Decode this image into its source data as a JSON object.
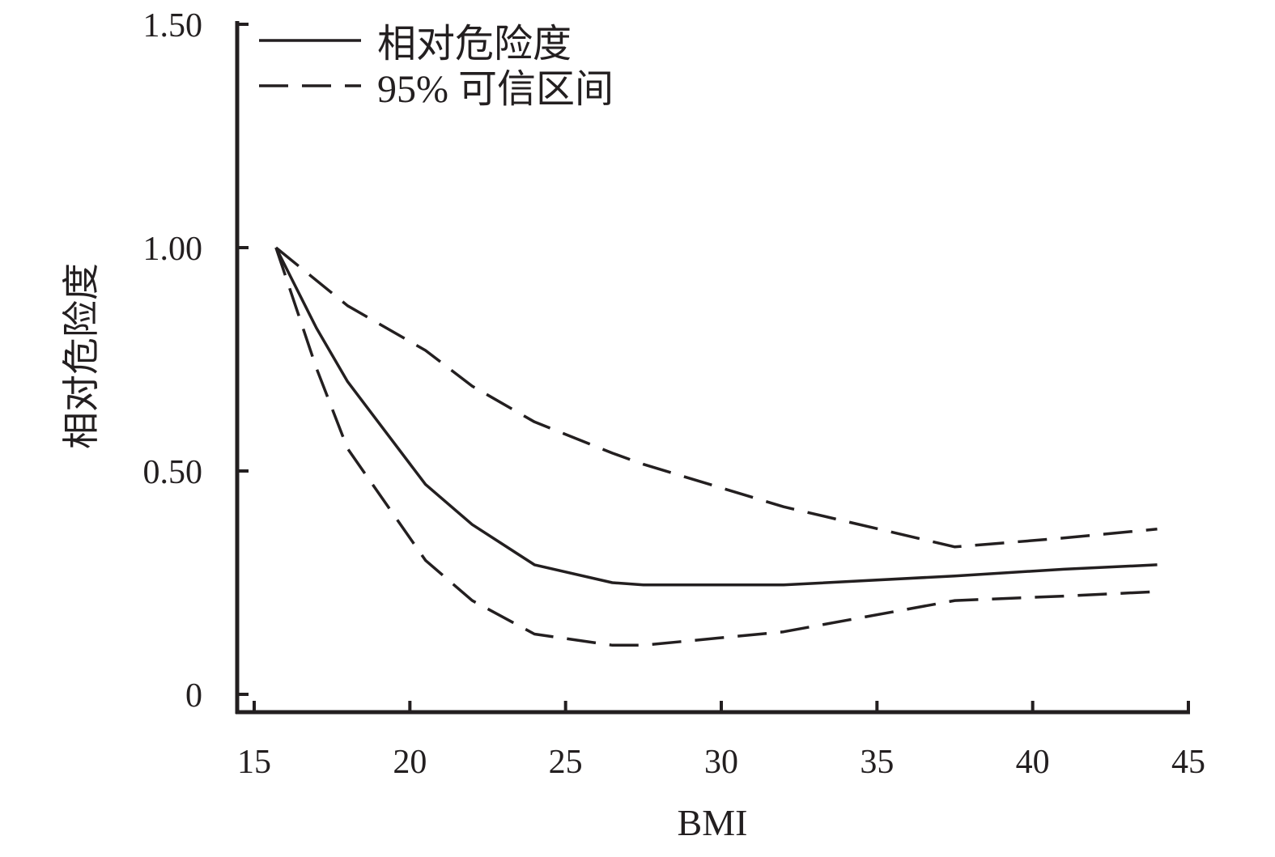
{
  "chart_data": {
    "type": "line",
    "xlabel": "BMI",
    "ylabel": "相对危险度",
    "xlim": [
      15,
      45
    ],
    "ylim": [
      0,
      1.5
    ],
    "xticks": [
      {
        "value": 15,
        "label": "15"
      },
      {
        "value": 20,
        "label": "20"
      },
      {
        "value": 25,
        "label": "25"
      },
      {
        "value": 30,
        "label": "30"
      },
      {
        "value": 35,
        "label": "35"
      },
      {
        "value": 40,
        "label": "40"
      },
      {
        "value": 45,
        "label": "45"
      }
    ],
    "yticks": [
      {
        "value": 0,
        "label": "0"
      },
      {
        "value": 0.5,
        "label": "0.50"
      },
      {
        "value": 1.0,
        "label": "1.00"
      },
      {
        "value": 1.5,
        "label": "1.50"
      }
    ],
    "legend_position": "top-left",
    "series": [
      {
        "name": "相对危险度",
        "style": "solid",
        "color": "#231f20",
        "x": [
          15.7,
          17.0,
          18.0,
          20.5,
          22.0,
          24.0,
          26.5,
          27.5,
          32.0,
          37.5,
          41.0,
          44.0
        ],
        "y": [
          1.0,
          0.82,
          0.7,
          0.47,
          0.38,
          0.29,
          0.25,
          0.245,
          0.245,
          0.265,
          0.28,
          0.29
        ]
      },
      {
        "name": "95% 可信区间",
        "style": "dashed",
        "color": "#231f20",
        "x": [
          15.7,
          18.0,
          20.5,
          22.0,
          24.0,
          26.5,
          27.5,
          32.0,
          37.5,
          41.0,
          44.0
        ],
        "y": [
          1.0,
          0.87,
          0.77,
          0.69,
          0.61,
          0.54,
          0.515,
          0.42,
          0.33,
          0.35,
          0.37
        ]
      },
      {
        "name": "",
        "style": "dashed",
        "color": "#231f20",
        "x": [
          15.7,
          17.0,
          18.0,
          20.5,
          22.0,
          24.0,
          26.5,
          27.5,
          32.0,
          37.5,
          41.0,
          44.0
        ],
        "y": [
          1.0,
          0.73,
          0.55,
          0.3,
          0.21,
          0.135,
          0.11,
          0.11,
          0.14,
          0.21,
          0.22,
          0.23
        ]
      }
    ]
  }
}
